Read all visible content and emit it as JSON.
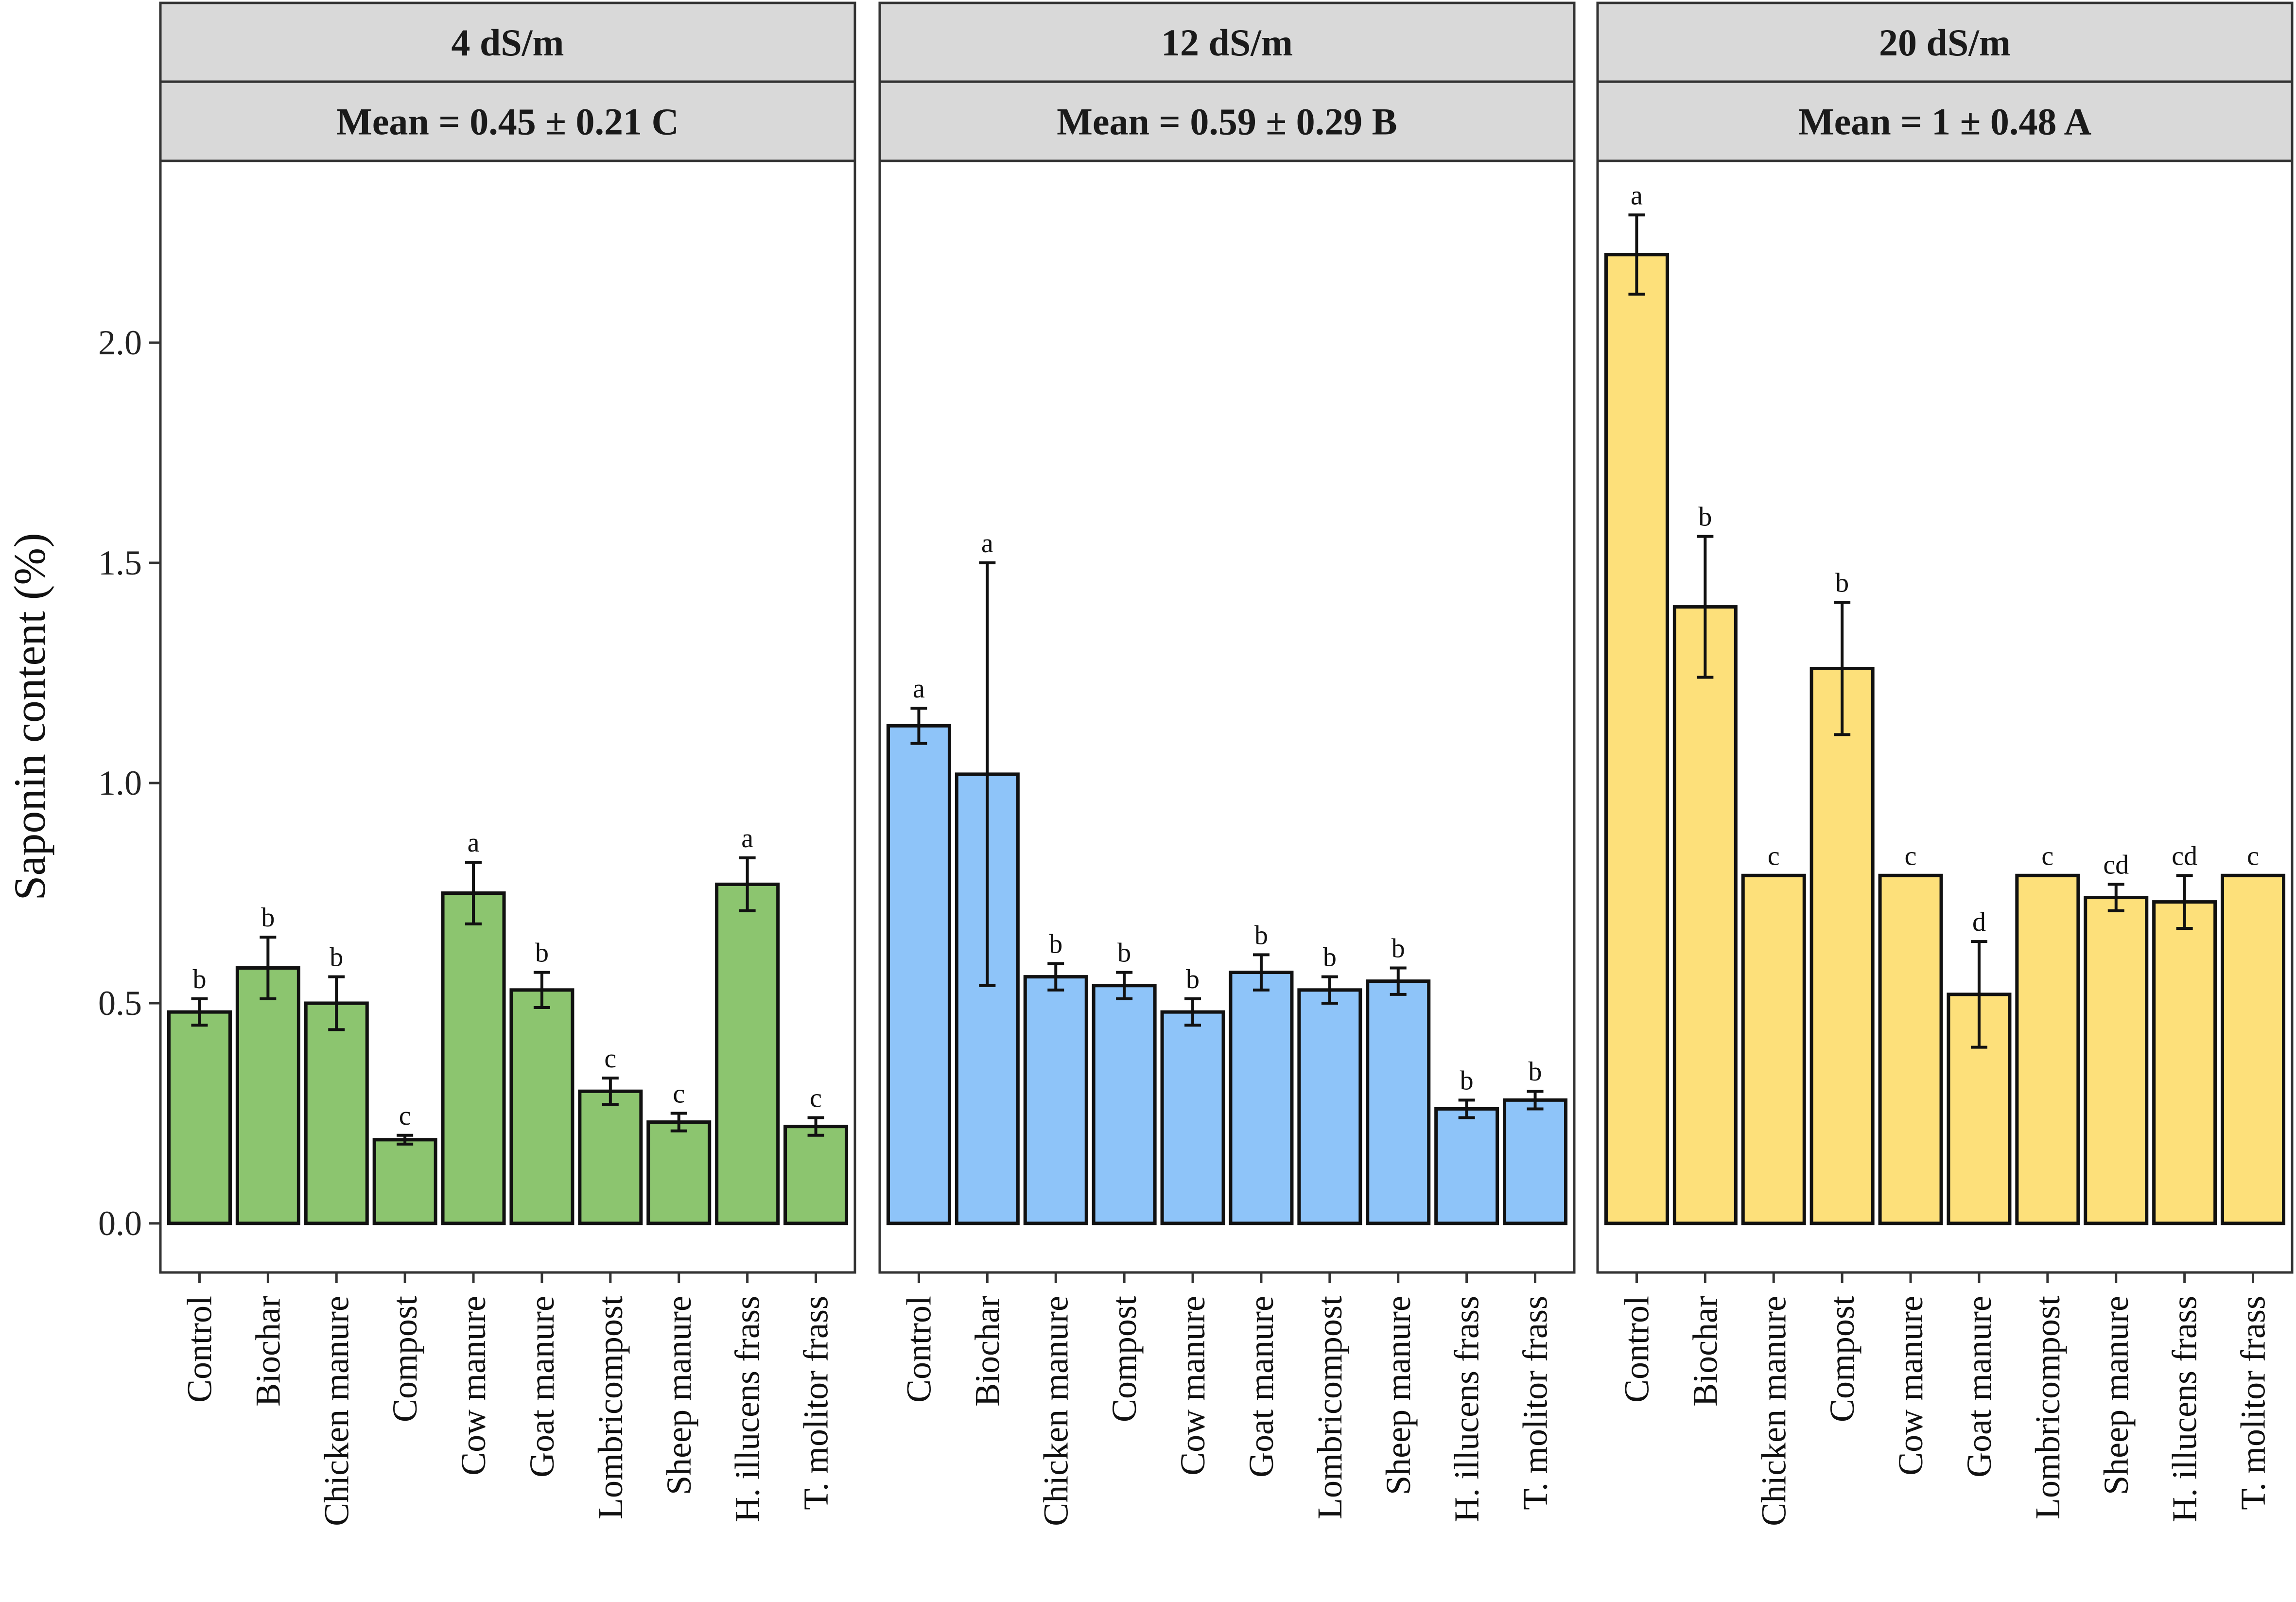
{
  "chart_data": {
    "type": "bar",
    "ylabel": "Saponin content (%)",
    "ylim": [
      -0.1,
      2.4
    ],
    "yticks": [
      0.0,
      0.5,
      1.0,
      1.5,
      2.0
    ],
    "ytick_labels": [
      "0.0",
      "0.5",
      "1.0",
      "1.5",
      "2.0"
    ],
    "categories": [
      "Control",
      "Biochar",
      "Chicken manure",
      "Compost",
      "Cow manure",
      "Goat manure",
      "Lombricompost",
      "Sheep manure",
      "H. illucens frass",
      "T. molitor frass"
    ],
    "panels": [
      {
        "strip": "4 dS/m",
        "mean_label": "Mean = 0.45 ± 0.21 C",
        "color": "#8cc56f",
        "values": [
          0.48,
          0.58,
          0.5,
          0.19,
          0.75,
          0.53,
          0.3,
          0.23,
          0.77,
          0.22
        ],
        "errors": [
          0.03,
          0.07,
          0.06,
          0.01,
          0.07,
          0.04,
          0.03,
          0.02,
          0.06,
          0.02
        ],
        "letters": [
          "b",
          "b",
          "b",
          "c",
          "a",
          "b",
          "c",
          "c",
          "a",
          "c"
        ]
      },
      {
        "strip": "12 dS/m",
        "mean_label": "Mean = 0.59 ± 0.29 B",
        "color": "#8ec4f9",
        "values": [
          1.13,
          1.02,
          0.56,
          0.54,
          0.48,
          0.57,
          0.53,
          0.55,
          0.26,
          0.28
        ],
        "errors": [
          0.04,
          0.48,
          0.03,
          0.03,
          0.03,
          0.04,
          0.03,
          0.03,
          0.02,
          0.02
        ],
        "letters": [
          "a",
          "a",
          "b",
          "b",
          "b",
          "b",
          "b",
          "b",
          "b",
          "b"
        ]
      },
      {
        "strip": "20 dS/m",
        "mean_label": "Mean = 1 ± 0.48 A",
        "color": "#fde07a",
        "values": [
          2.2,
          1.4,
          0.79,
          1.26,
          0.79,
          0.52,
          0.79,
          0.74,
          0.73,
          0.79
        ],
        "errors": [
          0.09,
          0.16,
          0.0,
          0.15,
          0.0,
          0.12,
          0.0,
          0.03,
          0.06,
          0.0
        ],
        "letters": [
          "a",
          "b",
          "c",
          "b",
          "c",
          "d",
          "c",
          "cd",
          "cd",
          "c"
        ]
      }
    ]
  }
}
